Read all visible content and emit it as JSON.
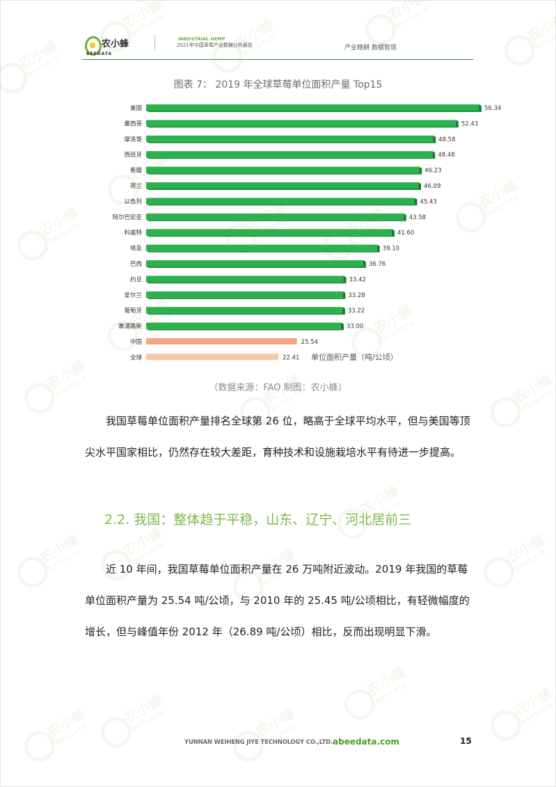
{
  "header": {
    "logo_text": "农小蜂",
    "logo_sub": "BEEDATA",
    "english_title": "INDUSTRIAL HEMP",
    "report_title": "2021年中国草莓产业数据分析报告",
    "slogan": "产业精耕  数据智现"
  },
  "figure": {
    "title": "图表 7：  2019 年全球草莓单位面积产量 Top15",
    "source": "（数据来源：FAO  制图：农小蜂）"
  },
  "chart_data": {
    "type": "bar",
    "orientation": "horizontal",
    "title": "图表 7：  2019 年全球草莓单位面积产量 Top15",
    "annotation": "单位面积产量（吨/公顷）",
    "categories": [
      "美国",
      "墨西哥",
      "摩洛哥",
      "西班牙",
      "希腊",
      "荷兰",
      "以色列",
      "阿尔巴尼亚",
      "科威特",
      "埃及",
      "巴西",
      "约旦",
      "爱尔兰",
      "葡萄牙",
      "塞浦路斯",
      "中国",
      "全球"
    ],
    "values": [
      56.34,
      52.43,
      48.58,
      48.48,
      46.23,
      46.09,
      45.43,
      43.58,
      41.6,
      39.1,
      36.76,
      33.42,
      33.28,
      33.22,
      33.0,
      25.54,
      22.41
    ],
    "value_labels": [
      "56.34",
      "52.43",
      "48.58",
      "48.48",
      "46.23",
      "46.09",
      "45.43",
      "43.58",
      "41.60",
      "39.10",
      "36.76",
      "33.42",
      "33.28",
      "33.22",
      "33.00",
      "25.54",
      "22.41"
    ],
    "bar_colors": [
      "#2bb24c",
      "#2bb24c",
      "#2bb24c",
      "#2bb24c",
      "#2bb24c",
      "#2bb24c",
      "#2bb24c",
      "#2bb24c",
      "#2bb24c",
      "#2bb24c",
      "#2bb24c",
      "#2bb24c",
      "#2bb24c",
      "#2bb24c",
      "#2bb24c",
      "#f4a582",
      "#f8c7a8"
    ],
    "xlim": [
      0,
      56.34
    ],
    "grid": false,
    "legend": "none"
  },
  "body": {
    "para1": "我国草莓单位面积产量排名全球第 26 位，略高于全球平均水平，但与美国等顶尖水平国家相比，仍然存在较大差距，育种技术和设施栽培水平有待进一步提高。",
    "section_heading": "2.2. 我国：整体趋于平稳，山东、辽宁、河北居前三",
    "para2": "近 10 年间，我国草莓单位面积产量在 26 万吨附近波动。2019 年我国的草莓单位面积产量为 25.54 吨/公顷，与 2010 年的 25.45 吨/公顷相比，有轻微幅度的增长，但与峰值年份 2012 年（26.89 吨/公顷）相比，反而出现明显下滑。"
  },
  "footer": {
    "company": "YUNNAN WEIHENG JIYE TECHNOLOGY CO.,LTD.",
    "site": "abeedata.com",
    "page_number": "15"
  },
  "watermark": {
    "text": "农小蜂",
    "sub": "BEEDATA",
    "color": "#7cb84a"
  }
}
